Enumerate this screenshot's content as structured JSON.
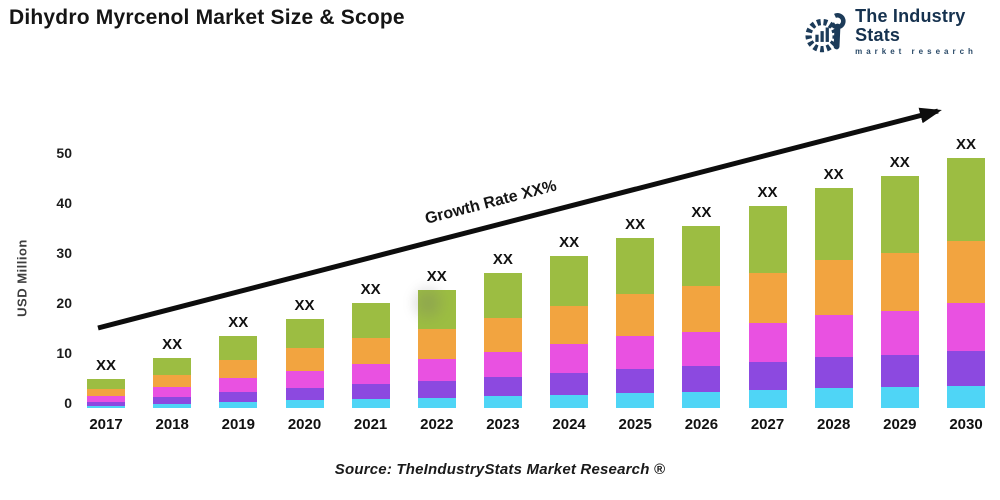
{
  "header": {
    "title": "Dihydro Myrcenol Market Size & Scope",
    "logo": {
      "name": "The Industry Stats",
      "tagline": "market research",
      "color": "#16324f"
    }
  },
  "chart_data": {
    "type": "bar",
    "stacked": true,
    "categories": [
      "2017",
      "2018",
      "2019",
      "2020",
      "2021",
      "2022",
      "2023",
      "2024",
      "2025",
      "2026",
      "2027",
      "2028",
      "2029",
      "2030"
    ],
    "series": [
      {
        "name": "segment-cyan",
        "color": "#4fd5f6",
        "values": [
          0.5,
          0.9,
          1.3,
          1.6,
          1.9,
          2.1,
          2.4,
          2.7,
          3.1,
          3.3,
          3.6,
          4.0,
          4.2,
          4.5
        ]
      },
      {
        "name": "segment-purple",
        "color": "#8c49e0",
        "values": [
          0.8,
          1.4,
          2.0,
          2.5,
          2.9,
          3.3,
          3.8,
          4.3,
          4.8,
          5.1,
          5.7,
          6.2,
          6.5,
          7.0
        ]
      },
      {
        "name": "segment-magenta",
        "color": "#e951e1",
        "values": [
          1.1,
          1.9,
          2.8,
          3.4,
          4.0,
          4.5,
          5.1,
          5.8,
          6.5,
          6.9,
          7.7,
          8.4,
          8.8,
          9.5
        ]
      },
      {
        "name": "segment-orange",
        "color": "#f2a440",
        "values": [
          1.5,
          2.5,
          3.6,
          4.5,
          5.3,
          5.9,
          6.8,
          7.6,
          8.5,
          9.1,
          10.1,
          11.0,
          11.6,
          12.5
        ]
      },
      {
        "name": "segment-green",
        "color": "#9cbd42",
        "values": [
          2.0,
          3.3,
          4.8,
          5.9,
          6.9,
          7.8,
          8.9,
          10.1,
          11.2,
          12.1,
          13.4,
          14.5,
          15.4,
          16.5
        ]
      }
    ],
    "totals": [
      5.9,
      10.0,
      14.5,
      17.9,
      21.0,
      23.6,
      27.0,
      30.5,
      34.1,
      36.5,
      40.5,
      44.1,
      46.5,
      50.0
    ],
    "bar_value_label": "XX",
    "ylabel": "USD Million",
    "yticks": [
      0,
      10,
      20,
      30,
      40,
      50
    ],
    "ylim": [
      0,
      55
    ],
    "grid": false,
    "legend": "none",
    "annotation": "Growth Rate XX%",
    "source": "Source: TheIndustryStats Market Research ®"
  }
}
